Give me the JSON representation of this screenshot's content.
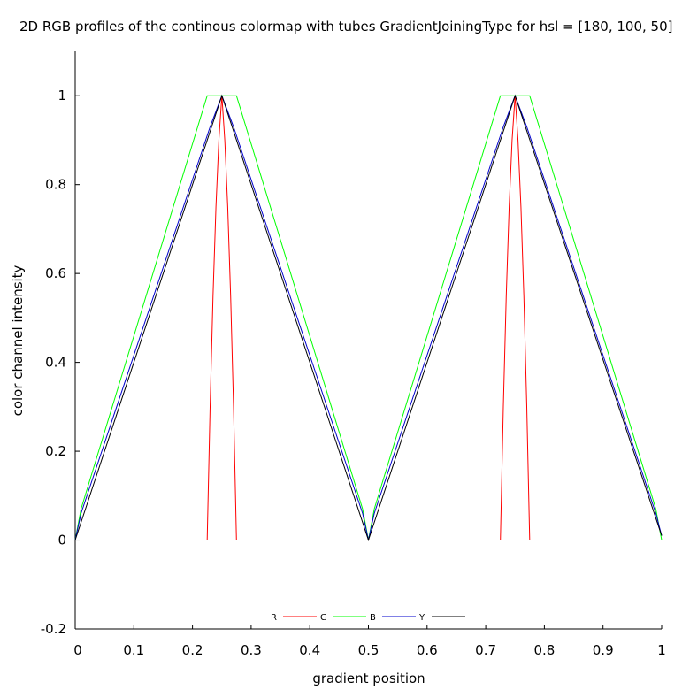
{
  "chart_data": {
    "type": "line",
    "title": "2D RGB profiles of the continous colormap with tubes GradientJoiningType for hsl = [180, 100, 50]",
    "xlabel": "gradient position",
    "ylabel": "color channel intensity",
    "xlim": [
      0,
      1
    ],
    "ylim": [
      -0.2,
      1.1
    ],
    "xticks": [
      "0",
      "0.1",
      "0.2",
      "0.3",
      "0.4",
      "0.5",
      "0.6",
      "0.7",
      "0.8",
      "0.9",
      "1"
    ],
    "yticks": [
      "-0.2",
      "0",
      "0.2",
      "0.4",
      "0.6",
      "0.8",
      "1"
    ],
    "legend_position": "bottom-center",
    "series": [
      {
        "name": "R",
        "color": "#ff0000",
        "points": [
          [
            0,
            0
          ],
          [
            0.225,
            0
          ],
          [
            0.23,
            0.3
          ],
          [
            0.235,
            0.55
          ],
          [
            0.24,
            0.75
          ],
          [
            0.245,
            0.9
          ],
          [
            0.25,
            1
          ],
          [
            0.255,
            0.9
          ],
          [
            0.26,
            0.75
          ],
          [
            0.265,
            0.55
          ],
          [
            0.27,
            0.3
          ],
          [
            0.275,
            0
          ],
          [
            0.725,
            0
          ],
          [
            0.73,
            0.3
          ],
          [
            0.735,
            0.55
          ],
          [
            0.74,
            0.75
          ],
          [
            0.745,
            0.9
          ],
          [
            0.75,
            1
          ],
          [
            0.755,
            0.9
          ],
          [
            0.76,
            0.75
          ],
          [
            0.765,
            0.55
          ],
          [
            0.77,
            0.3
          ],
          [
            0.775,
            0
          ],
          [
            1,
            0
          ]
        ]
      },
      {
        "name": "G",
        "color": "#00ff00",
        "points": [
          [
            0,
            0
          ],
          [
            0.01,
            0.07
          ],
          [
            0.225,
            1
          ],
          [
            0.275,
            1
          ],
          [
            0.49,
            0.07
          ],
          [
            0.5,
            0
          ],
          [
            0.51,
            0.07
          ],
          [
            0.725,
            1
          ],
          [
            0.775,
            1
          ],
          [
            0.99,
            0.07
          ],
          [
            1,
            0
          ]
        ]
      },
      {
        "name": "B",
        "color": "#0000cc",
        "points": [
          [
            0,
            0
          ],
          [
            0.01,
            0.06
          ],
          [
            0.23,
            0.93
          ],
          [
            0.25,
            1
          ],
          [
            0.27,
            0.93
          ],
          [
            0.49,
            0.06
          ],
          [
            0.5,
            0
          ],
          [
            0.51,
            0.06
          ],
          [
            0.73,
            0.93
          ],
          [
            0.75,
            1
          ],
          [
            0.77,
            0.93
          ],
          [
            0.99,
            0.06
          ],
          [
            1,
            0.01
          ]
        ]
      },
      {
        "name": "Y",
        "color": "#000000",
        "points": [
          [
            0,
            0
          ],
          [
            0.25,
            1
          ],
          [
            0.5,
            0
          ],
          [
            0.75,
            1
          ],
          [
            1,
            0.01
          ]
        ]
      }
    ]
  }
}
